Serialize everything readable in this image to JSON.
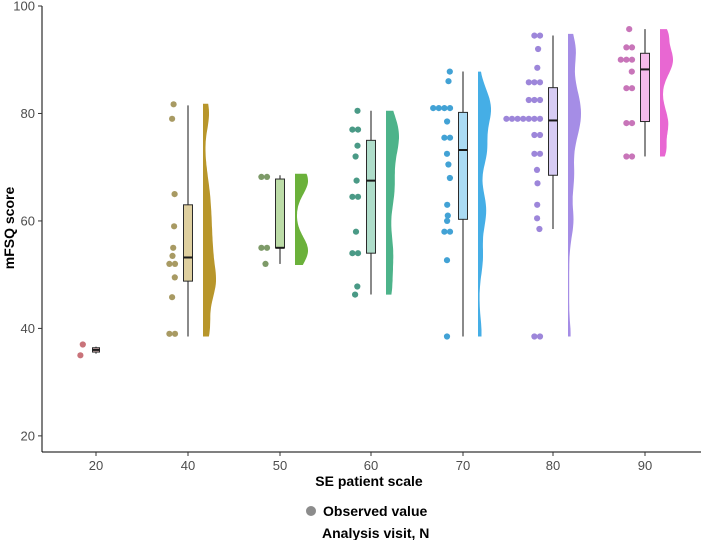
{
  "chart_data": {
    "type": "raincloud",
    "xlabel": "SE patient scale",
    "ylabel": "mFSQ score",
    "ylim": [
      17,
      100
    ],
    "yticks": [
      20,
      40,
      60,
      80,
      100
    ],
    "categories": [
      "20",
      "40",
      "50",
      "60",
      "70",
      "80",
      "90"
    ],
    "legend": {
      "marker_label": "Observed value",
      "caption": "Analysis visit, N",
      "placement": "bottom"
    },
    "groups": [
      {
        "category": "20",
        "color": "#c9737a",
        "point_color": "#c9737a",
        "box": {
          "q1": 35.6,
          "median": 36.0,
          "q3": 36.4,
          "whisker_low": 35.3,
          "whisker_high": 36.6
        },
        "points": [
          37.0,
          35.0
        ],
        "density": null
      },
      {
        "category": "40",
        "color": "#b8962b",
        "point_color": "#a89a63",
        "box": {
          "q1": 48.8,
          "median": 53.2,
          "q3": 63.0,
          "whisker_low": 38.5,
          "whisker_high": 81.5
        },
        "points": [
          81.7,
          79.0,
          65.0,
          59.0,
          55.0,
          53.5,
          52.0,
          52.0,
          49.5,
          45.8,
          39.0,
          39.0
        ],
        "density": {
          "min": 38.5,
          "max": 81.8,
          "peaks": [
            {
              "at": 53,
              "w": 6,
              "h": 1.0
            },
            {
              "at": 40,
              "w": 3,
              "h": 0.6
            },
            {
              "at": 48,
              "w": 3,
              "h": 0.7
            },
            {
              "at": 64,
              "w": 5,
              "h": 0.6
            },
            {
              "at": 80,
              "w": 3,
              "h": 0.6
            }
          ]
        }
      },
      {
        "category": "50",
        "color": "#6bb13b",
        "point_color": "#7d9a68",
        "box": {
          "q1": 55.0,
          "median": 55.0,
          "q3": 67.8,
          "whisker_low": 52.0,
          "whisker_high": 68.5
        },
        "points": [
          68.2,
          68.2,
          55.0,
          55.0,
          52.0
        ],
        "density": {
          "min": 51.8,
          "max": 68.8,
          "peaks": [
            {
              "at": 54.5,
              "w": 2.5,
              "h": 1.0
            },
            {
              "at": 67.5,
              "w": 2.5,
              "h": 1.0
            }
          ]
        }
      },
      {
        "category": "60",
        "color": "#4db38a",
        "point_color": "#4a9a86",
        "box": {
          "q1": 54.0,
          "median": 67.5,
          "q3": 75.0,
          "whisker_low": 46.3,
          "whisker_high": 80.5
        },
        "points": [
          80.5,
          77.0,
          77.0,
          74.0,
          72.0,
          67.5,
          64.5,
          64.5,
          58.0,
          54.0,
          54.0,
          47.8,
          46.3
        ],
        "density": {
          "min": 46.3,
          "max": 80.5,
          "peaks": [
            {
              "at": 76,
              "w": 4,
              "h": 1.0
            },
            {
              "at": 66,
              "w": 4,
              "h": 0.6
            },
            {
              "at": 54,
              "w": 4,
              "h": 0.5
            },
            {
              "at": 47,
              "w": 3,
              "h": 0.3
            }
          ]
        }
      },
      {
        "category": "70",
        "color": "#45aee6",
        "point_color": "#42a2d5",
        "box": {
          "q1": 60.3,
          "median": 73.2,
          "q3": 80.2,
          "whisker_low": 38.5,
          "whisker_high": 87.8
        },
        "points": [
          87.8,
          86.0,
          81.0,
          81.0,
          81.0,
          81.0,
          78.5,
          75.5,
          75.5,
          72.5,
          70.5,
          68.0,
          63.0,
          61.0,
          60.0,
          58.0,
          58.0,
          52.7,
          38.5
        ],
        "density": {
          "min": 38.5,
          "max": 87.8,
          "peaks": [
            {
              "at": 81,
              "w": 3.5,
              "h": 1.0
            },
            {
              "at": 73,
              "w": 3,
              "h": 0.6
            },
            {
              "at": 62,
              "w": 3.5,
              "h": 0.6
            },
            {
              "at": 53,
              "w": 3,
              "h": 0.3
            },
            {
              "at": 39,
              "w": 3,
              "h": 0.2
            }
          ]
        }
      },
      {
        "category": "80",
        "color": "#a58de6",
        "point_color": "#9d86da",
        "box": {
          "q1": 68.5,
          "median": 78.7,
          "q3": 84.8,
          "whisker_low": 58.5,
          "whisker_high": 94.5
        },
        "points": [
          94.5,
          94.5,
          92.0,
          88.5,
          85.8,
          85.8,
          85.8,
          82.5,
          82.5,
          82.5,
          79.0,
          79.0,
          79.0,
          79.0,
          79.0,
          79.0,
          79.0,
          76.0,
          76.0,
          72.5,
          72.5,
          69.5,
          67.0,
          63.0,
          60.5,
          58.5,
          38.5,
          38.5
        ],
        "density": {
          "min": 38.5,
          "max": 94.8,
          "peaks": [
            {
              "at": 80,
              "w": 5,
              "h": 1.0
            },
            {
              "at": 92,
              "w": 3,
              "h": 0.5
            },
            {
              "at": 68,
              "w": 3,
              "h": 0.35
            },
            {
              "at": 60,
              "w": 3,
              "h": 0.35
            },
            {
              "at": 39,
              "w": 2,
              "h": 0.12
            }
          ]
        }
      },
      {
        "category": "90",
        "color": "#e867d2",
        "point_color": "#c875b9",
        "box": {
          "q1": 78.5,
          "median": 88.2,
          "q3": 91.2,
          "whisker_low": 72.0,
          "whisker_high": 95.7
        },
        "points": [
          95.7,
          92.3,
          92.3,
          90.0,
          90.0,
          90.0,
          87.8,
          84.7,
          84.7,
          78.2,
          78.2,
          72.0,
          72.0
        ],
        "density": {
          "min": 72.0,
          "max": 95.7,
          "peaks": [
            {
              "at": 90,
              "w": 2.8,
              "h": 1.0
            },
            {
              "at": 78,
              "w": 2.8,
              "h": 0.6
            },
            {
              "at": 73,
              "w": 1.5,
              "h": 0.3
            },
            {
              "at": 95,
              "w": 1.5,
              "h": 0.4
            }
          ]
        }
      }
    ]
  }
}
